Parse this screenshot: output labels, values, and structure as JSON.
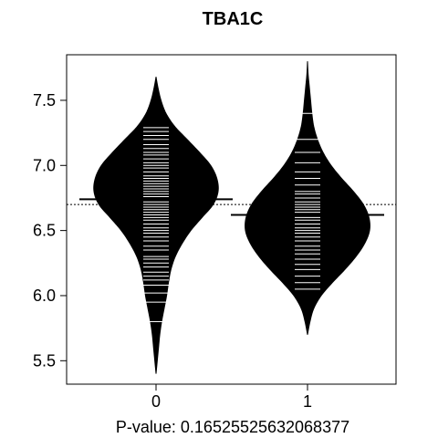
{
  "chart_data": {
    "type": "beanplot",
    "title": "TBA1C",
    "xlabel": "P-value: 0.16525525632068377",
    "ylabel": "",
    "categories": [
      "0",
      "1"
    ],
    "ylim": [
      5.32,
      7.85
    ],
    "yticks": [
      5.5,
      6.0,
      6.5,
      7.0,
      7.5
    ],
    "ytick_labels": [
      "5.5",
      "6.0",
      "6.5",
      "7.0",
      "7.5"
    ],
    "overall_mean": 6.7,
    "groups": [
      {
        "name": "0",
        "mean": 6.74,
        "range": [
          5.4,
          7.68
        ],
        "density": [
          [
            5.4,
            0.0
          ],
          [
            5.5,
            0.02
          ],
          [
            5.6,
            0.04
          ],
          [
            5.7,
            0.06
          ],
          [
            5.8,
            0.09
          ],
          [
            5.9,
            0.13
          ],
          [
            6.0,
            0.17
          ],
          [
            6.1,
            0.2
          ],
          [
            6.2,
            0.24
          ],
          [
            6.3,
            0.31
          ],
          [
            6.4,
            0.42
          ],
          [
            6.5,
            0.56
          ],
          [
            6.6,
            0.74
          ],
          [
            6.7,
            0.92
          ],
          [
            6.8,
            1.0
          ],
          [
            6.9,
            0.98
          ],
          [
            7.0,
            0.88
          ],
          [
            7.1,
            0.7
          ],
          [
            7.2,
            0.5
          ],
          [
            7.3,
            0.3
          ],
          [
            7.4,
            0.16
          ],
          [
            7.5,
            0.08
          ],
          [
            7.6,
            0.03
          ],
          [
            7.68,
            0.0
          ]
        ],
        "values": [
          5.8,
          5.95,
          6.02,
          6.08,
          6.12,
          6.15,
          6.18,
          6.22,
          6.25,
          6.28,
          6.3,
          6.35,
          6.38,
          6.42,
          6.45,
          6.48,
          6.5,
          6.52,
          6.55,
          6.58,
          6.6,
          6.62,
          6.64,
          6.66,
          6.68,
          6.7,
          6.72,
          6.74,
          6.76,
          6.78,
          6.8,
          6.82,
          6.84,
          6.86,
          6.88,
          6.9,
          6.92,
          6.95,
          6.98,
          7.0,
          7.02,
          7.05,
          7.08,
          7.1,
          7.13,
          7.16,
          7.2,
          7.23,
          7.26,
          7.29
        ]
      },
      {
        "name": "1",
        "mean": 6.62,
        "range": [
          5.7,
          7.8
        ],
        "density": [
          [
            5.7,
            0.0
          ],
          [
            5.8,
            0.04
          ],
          [
            5.9,
            0.1
          ],
          [
            6.0,
            0.22
          ],
          [
            6.1,
            0.4
          ],
          [
            6.2,
            0.6
          ],
          [
            6.3,
            0.78
          ],
          [
            6.4,
            0.92
          ],
          [
            6.5,
            1.0
          ],
          [
            6.6,
            0.99
          ],
          [
            6.7,
            0.9
          ],
          [
            6.8,
            0.74
          ],
          [
            6.9,
            0.55
          ],
          [
            7.0,
            0.38
          ],
          [
            7.1,
            0.25
          ],
          [
            7.2,
            0.16
          ],
          [
            7.3,
            0.1
          ],
          [
            7.4,
            0.07
          ],
          [
            7.5,
            0.05
          ],
          [
            7.6,
            0.03
          ],
          [
            7.7,
            0.01
          ],
          [
            7.8,
            0.0
          ]
        ],
        "values": [
          6.05,
          6.1,
          6.15,
          6.2,
          6.24,
          6.28,
          6.32,
          6.35,
          6.38,
          6.42,
          6.45,
          6.48,
          6.5,
          6.52,
          6.55,
          6.58,
          6.6,
          6.62,
          6.64,
          6.66,
          6.68,
          6.7,
          6.72,
          6.75,
          6.78,
          6.8,
          6.85,
          6.9,
          6.95,
          7.02,
          7.1,
          7.2,
          7.4
        ]
      }
    ],
    "grid": false,
    "legend": "none",
    "colors": {
      "bean": "#000000",
      "line": "#ffffff",
      "axis": "#000000",
      "background": "#ffffff"
    }
  }
}
